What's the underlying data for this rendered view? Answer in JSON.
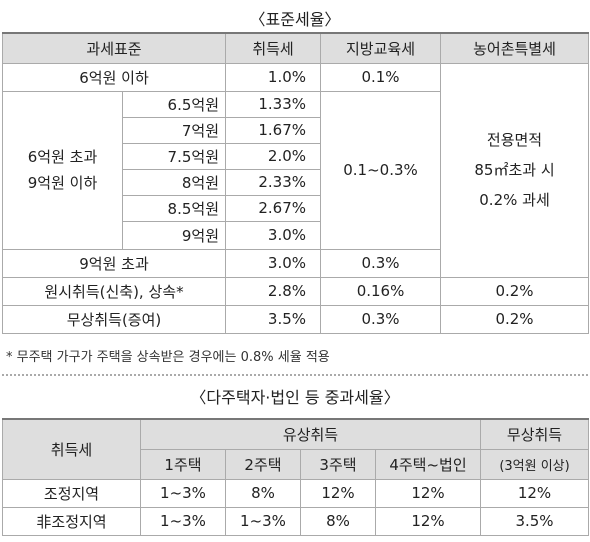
{
  "standard": {
    "title": "〈표준세율〉",
    "headers": [
      "과세표준",
      "취득세",
      "지방교육세",
      "농어촌특별세"
    ],
    "under6": {
      "label": "6억원 이하",
      "acquisition": "1.0%",
      "education": "0.1%"
    },
    "mid": {
      "label": [
        "6억원 초과",
        "9억원 이하"
      ],
      "education": "0.1~0.3%",
      "brackets": [
        {
          "base": "6.5억원",
          "rate": "1.33%"
        },
        {
          "base": "7억원",
          "rate": "1.67%"
        },
        {
          "base": "7.5억원",
          "rate": "2.0%"
        },
        {
          "base": "8억원",
          "rate": "2.33%"
        },
        {
          "base": "8.5억원",
          "rate": "2.67%"
        },
        {
          "base": "9억원",
          "rate": "3.0%"
        }
      ]
    },
    "over9": {
      "label": "9억원 초과",
      "acquisition": "3.0%",
      "education": "0.3%"
    },
    "rural_note": [
      "전용면적",
      "85㎡초과 시",
      "0.2% 과세"
    ],
    "original": {
      "label": "원시취득(신축), 상속*",
      "acquisition": "2.8%",
      "education": "0.16%",
      "rural": "0.2%"
    },
    "gift": {
      "label": "무상취득(증여)",
      "acquisition": "3.5%",
      "education": "0.3%",
      "rural": "0.2%"
    },
    "footnote": "* 무주택 가구가 주택을 상속받은 경우에는 0.8% 세율 적용"
  },
  "heavy": {
    "title": "〈다주택자·법인 등 중과세율〉",
    "corner": "취득세",
    "paid": "유상취득",
    "free": "무상취득",
    "subheaders": [
      "1주택",
      "2주택",
      "3주택",
      "4주택~법인",
      "(3억원 이상)"
    ],
    "rows": [
      {
        "label": "조정지역",
        "values": [
          "1~3%",
          "8%",
          "12%",
          "12%",
          "12%"
        ]
      },
      {
        "label": "非조정지역",
        "values": [
          "1~3%",
          "1~3%",
          "8%",
          "12%",
          "3.5%"
        ]
      }
    ]
  }
}
